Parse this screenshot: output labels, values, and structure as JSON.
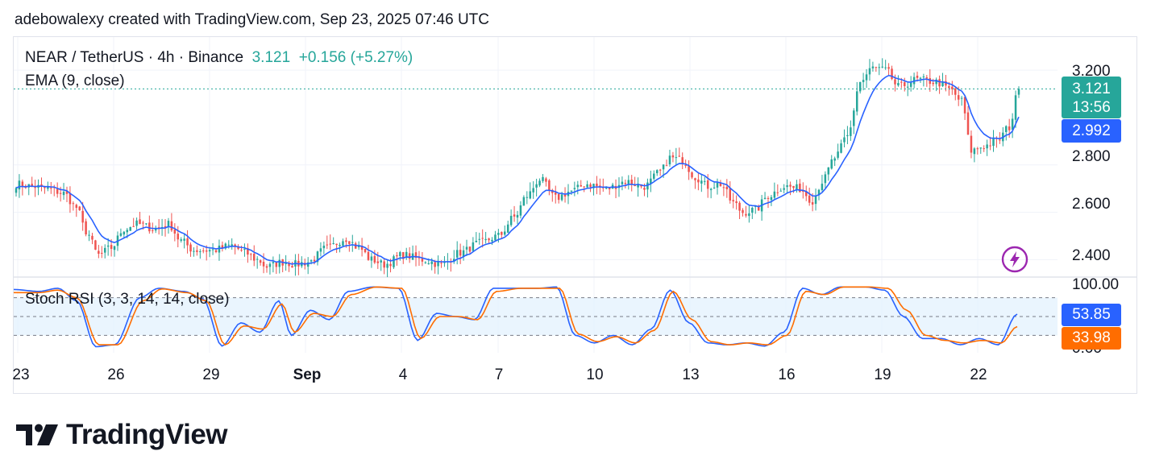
{
  "header": {
    "attribution": "adebowalexy created with TradingView.com, Sep 23, 2025 07:46 UTC"
  },
  "legend": {
    "symbol": "NEAR / TetherUS · 4h · Binance",
    "last": "3.121",
    "change": "+0.156 (+5.27%)",
    "ema": "EMA (9, close)",
    "stoch": "Stoch RSI (3, 3, 14, 14, close)"
  },
  "price_axis": {
    "labels": [
      "3.200",
      "2.800",
      "2.600",
      "2.400"
    ],
    "last_price_tag": "3.121",
    "countdown_tag": "13:56",
    "ema_tag": "2.992"
  },
  "stoch_axis": {
    "labels": [
      "100.00",
      "0.00"
    ],
    "k_tag": "53.85",
    "d_tag": "33.98"
  },
  "time_axis": {
    "labels": [
      "23",
      "26",
      "29",
      "Sep",
      "4",
      "7",
      "10",
      "13",
      "16",
      "19",
      "22"
    ]
  },
  "colors": {
    "up": "#26a69a",
    "down": "#ef5350",
    "ema": "#2962ff",
    "k": "#2962ff",
    "d": "#ff6d00",
    "band": "#e3f2fd",
    "bolt": "#9c27b0"
  },
  "icons": {
    "bolt": "lightning-bolt-icon",
    "logo": "tradingview-logo-icon"
  },
  "logo": {
    "text": "TradingView"
  },
  "chart_data": [
    {
      "type": "candlestick",
      "title": "NEAR / TetherUS · 4h · Binance",
      "x_ticks": [
        "23",
        "26",
        "29",
        "Sep",
        "4",
        "7",
        "10",
        "13",
        "16",
        "19",
        "22"
      ],
      "ylim": [
        2.33,
        3.34
      ],
      "y_ticks": [
        2.4,
        2.6,
        2.8,
        3.2
      ],
      "last_price": 3.121,
      "change": 0.156,
      "change_pct": 5.27,
      "ema_last": 2.992,
      "close_anchors": [
        [
          0,
          2.72
        ],
        [
          5,
          2.71
        ],
        [
          10,
          2.7
        ],
        [
          15,
          2.68
        ],
        [
          19,
          2.62
        ],
        [
          22,
          2.52
        ],
        [
          26,
          2.42
        ],
        [
          30,
          2.45
        ],
        [
          34,
          2.53
        ],
        [
          38,
          2.55
        ],
        [
          44,
          2.53
        ],
        [
          48,
          2.55
        ],
        [
          52,
          2.48
        ],
        [
          56,
          2.44
        ],
        [
          62,
          2.44
        ],
        [
          68,
          2.46
        ],
        [
          72,
          2.43
        ],
        [
          76,
          2.4
        ],
        [
          79,
          2.37
        ],
        [
          84,
          2.39
        ],
        [
          88,
          2.38
        ],
        [
          92,
          2.39
        ],
        [
          98,
          2.45
        ],
        [
          104,
          2.49
        ],
        [
          108,
          2.45
        ],
        [
          112,
          2.4
        ],
        [
          116,
          2.38
        ],
        [
          122,
          2.42
        ],
        [
          128,
          2.4
        ],
        [
          134,
          2.38
        ],
        [
          140,
          2.43
        ],
        [
          146,
          2.47
        ],
        [
          152,
          2.5
        ],
        [
          157,
          2.58
        ],
        [
          161,
          2.67
        ],
        [
          165,
          2.74
        ],
        [
          170,
          2.66
        ],
        [
          175,
          2.69
        ],
        [
          180,
          2.72
        ],
        [
          186,
          2.7
        ],
        [
          192,
          2.73
        ],
        [
          198,
          2.71
        ],
        [
          203,
          2.77
        ],
        [
          206,
          2.83
        ],
        [
          210,
          2.82
        ],
        [
          214,
          2.75
        ],
        [
          218,
          2.71
        ],
        [
          222,
          2.72
        ],
        [
          226,
          2.64
        ],
        [
          229,
          2.6
        ],
        [
          233,
          2.61
        ],
        [
          237,
          2.67
        ],
        [
          242,
          2.71
        ],
        [
          247,
          2.7
        ],
        [
          251,
          2.65
        ],
        [
          254,
          2.73
        ],
        [
          258,
          2.83
        ],
        [
          262,
          2.92
        ],
        [
          266,
          3.15
        ],
        [
          270,
          3.21
        ],
        [
          274,
          3.2
        ],
        [
          278,
          3.13
        ],
        [
          284,
          3.16
        ],
        [
          290,
          3.15
        ],
        [
          294,
          3.12
        ],
        [
          298,
          3.07
        ],
        [
          301,
          2.86
        ],
        [
          305,
          2.88
        ],
        [
          309,
          2.9
        ],
        [
          313,
          2.96
        ],
        [
          316,
          3.121
        ]
      ]
    },
    {
      "type": "line",
      "title": "Stoch RSI (3, 3, 14, 14, close)",
      "ylim": [
        0,
        100
      ],
      "bands": [
        20,
        50,
        80
      ],
      "series": [
        {
          "name": "K",
          "last": 53.85
        },
        {
          "name": "D",
          "last": 33.98
        }
      ],
      "k_anchors": [
        [
          0,
          93
        ],
        [
          8,
          90
        ],
        [
          14,
          95
        ],
        [
          20,
          75
        ],
        [
          26,
          2
        ],
        [
          32,
          5
        ],
        [
          40,
          80
        ],
        [
          46,
          95
        ],
        [
          54,
          90
        ],
        [
          60,
          78
        ],
        [
          66,
          3
        ],
        [
          72,
          40
        ],
        [
          78,
          25
        ],
        [
          84,
          75
        ],
        [
          88,
          20
        ],
        [
          94,
          60
        ],
        [
          100,
          45
        ],
        [
          106,
          90
        ],
        [
          114,
          97
        ],
        [
          122,
          95
        ],
        [
          128,
          12
        ],
        [
          134,
          55
        ],
        [
          140,
          50
        ],
        [
          146,
          45
        ],
        [
          152,
          95
        ],
        [
          160,
          95
        ],
        [
          166,
          95
        ],
        [
          172,
          97
        ],
        [
          178,
          20
        ],
        [
          184,
          8
        ],
        [
          190,
          20
        ],
        [
          196,
          5
        ],
        [
          202,
          30
        ],
        [
          208,
          92
        ],
        [
          214,
          40
        ],
        [
          220,
          8
        ],
        [
          226,
          5
        ],
        [
          232,
          8
        ],
        [
          238,
          3
        ],
        [
          244,
          25
        ],
        [
          250,
          95
        ],
        [
          256,
          85
        ],
        [
          262,
          97
        ],
        [
          270,
          97
        ],
        [
          276,
          92
        ],
        [
          282,
          50
        ],
        [
          288,
          15
        ],
        [
          294,
          15
        ],
        [
          300,
          5
        ],
        [
          306,
          15
        ],
        [
          312,
          5
        ],
        [
          318,
          53.85
        ]
      ],
      "d_anchors": [
        [
          0,
          88
        ],
        [
          8,
          88
        ],
        [
          14,
          92
        ],
        [
          20,
          80
        ],
        [
          27,
          5
        ],
        [
          33,
          5
        ],
        [
          41,
          75
        ],
        [
          47,
          94
        ],
        [
          55,
          88
        ],
        [
          61,
          75
        ],
        [
          67,
          5
        ],
        [
          73,
          35
        ],
        [
          79,
          30
        ],
        [
          85,
          70
        ],
        [
          89,
          25
        ],
        [
          95,
          55
        ],
        [
          101,
          50
        ],
        [
          107,
          85
        ],
        [
          115,
          97
        ],
        [
          123,
          95
        ],
        [
          129,
          15
        ],
        [
          135,
          50
        ],
        [
          141,
          50
        ],
        [
          147,
          45
        ],
        [
          153,
          90
        ],
        [
          161,
          95
        ],
        [
          167,
          95
        ],
        [
          173,
          95
        ],
        [
          179,
          22
        ],
        [
          185,
          10
        ],
        [
          191,
          18
        ],
        [
          197,
          8
        ],
        [
          203,
          28
        ],
        [
          209,
          90
        ],
        [
          215,
          45
        ],
        [
          221,
          10
        ],
        [
          227,
          5
        ],
        [
          233,
          8
        ],
        [
          239,
          5
        ],
        [
          245,
          20
        ],
        [
          251,
          90
        ],
        [
          257,
          85
        ],
        [
          263,
          97
        ],
        [
          271,
          97
        ],
        [
          277,
          95
        ],
        [
          283,
          60
        ],
        [
          289,
          20
        ],
        [
          295,
          12
        ],
        [
          301,
          8
        ],
        [
          307,
          12
        ],
        [
          313,
          8
        ],
        [
          318,
          33.98
        ]
      ]
    }
  ]
}
